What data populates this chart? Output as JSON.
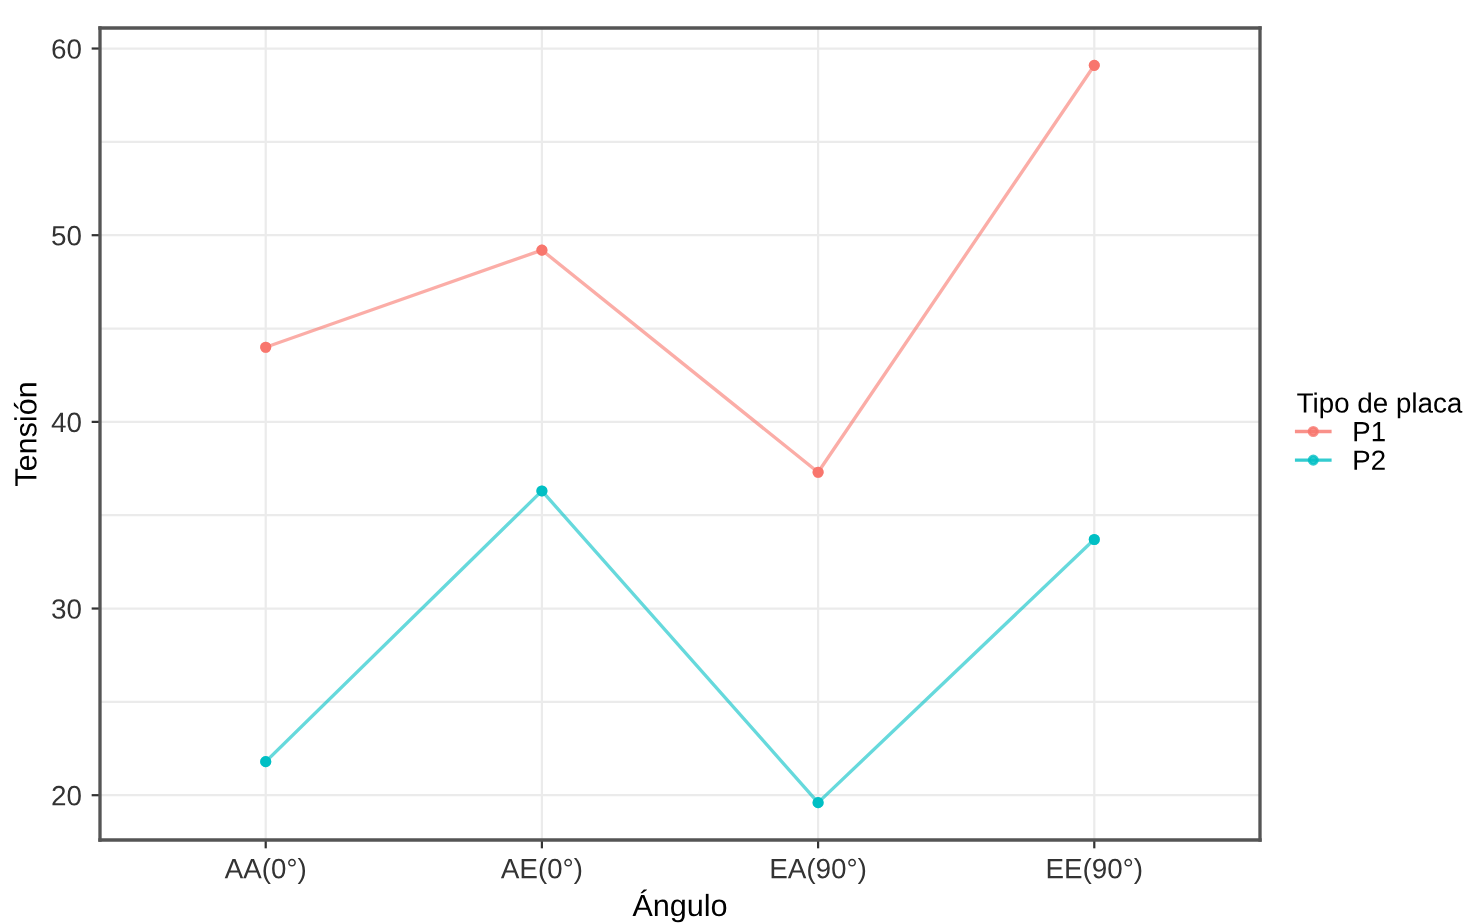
{
  "chart_data": {
    "type": "line",
    "xlabel": "Ángulo",
    "ylabel": "Tensión",
    "legend_title": "Tipo de placa",
    "categories": [
      "AA(0°)",
      "AE(0°)",
      "EA(90°)",
      "EE(90°)"
    ],
    "series": [
      {
        "name": "P1",
        "color": "#f8766d",
        "values": [
          44.0,
          49.2,
          37.3,
          59.1
        ]
      },
      {
        "name": "P2",
        "color": "#00bfc4",
        "values": [
          21.8,
          36.3,
          19.6,
          33.7
        ]
      }
    ],
    "ylim": [
      17.6,
      61.1
    ],
    "yticks": [
      20,
      30,
      40,
      50,
      60,
      {
        "value": 25,
        "label": null
      },
      {
        "value": 35,
        "label": null
      },
      {
        "value": 45,
        "label": null
      },
      {
        "value": 55,
        "label": null
      }
    ],
    "grid": true,
    "legend": "right",
    "marker": "circle",
    "line_style": "solid"
  }
}
